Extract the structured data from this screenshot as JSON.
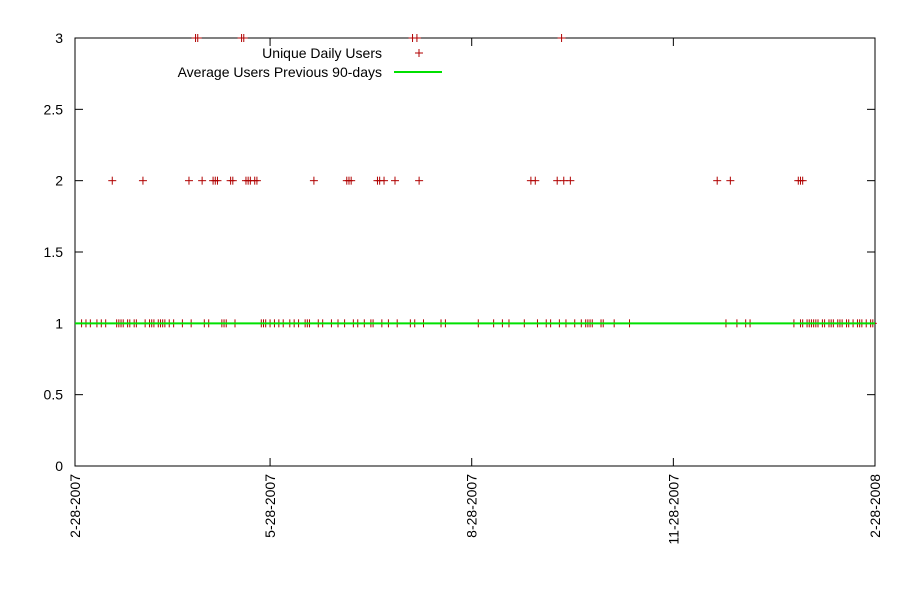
{
  "chart_data": {
    "type": "scatter",
    "title": "",
    "xlabel": "",
    "ylabel": "",
    "x_range": [
      "2007-02-28",
      "2008-02-28"
    ],
    "ylim": [
      0,
      3
    ],
    "grid": false,
    "legend_position": "top-left",
    "x_ticks": [
      "2-28-2007",
      "5-28-2007",
      "8-28-2007",
      "11-28-2007",
      "2-28-2008"
    ],
    "y_ticks": [
      "0",
      "0.5",
      "1",
      "1.5",
      "2",
      "2.5",
      "3"
    ],
    "series": [
      {
        "name": "Unique Daily Users",
        "marker": "plus",
        "color": "#b00000",
        "points": [
          {
            "x": "2007-03-03",
            "y": 1
          },
          {
            "x": "2007-03-05",
            "y": 1
          },
          {
            "x": "2007-03-07",
            "y": 1
          },
          {
            "x": "2007-03-10",
            "y": 1
          },
          {
            "x": "2007-03-12",
            "y": 1
          },
          {
            "x": "2007-03-14",
            "y": 1
          },
          {
            "x": "2007-03-17",
            "y": 2
          },
          {
            "x": "2007-03-19",
            "y": 1
          },
          {
            "x": "2007-03-20",
            "y": 1
          },
          {
            "x": "2007-03-21",
            "y": 1
          },
          {
            "x": "2007-03-22",
            "y": 1
          },
          {
            "x": "2007-03-24",
            "y": 1
          },
          {
            "x": "2007-03-25",
            "y": 1
          },
          {
            "x": "2007-03-27",
            "y": 1
          },
          {
            "x": "2007-03-28",
            "y": 1
          },
          {
            "x": "2007-03-31",
            "y": 2
          },
          {
            "x": "2007-04-01",
            "y": 1
          },
          {
            "x": "2007-04-03",
            "y": 1
          },
          {
            "x": "2007-04-04",
            "y": 1
          },
          {
            "x": "2007-04-05",
            "y": 1
          },
          {
            "x": "2007-04-07",
            "y": 1
          },
          {
            "x": "2007-04-08",
            "y": 1
          },
          {
            "x": "2007-04-09",
            "y": 1
          },
          {
            "x": "2007-04-10",
            "y": 1
          },
          {
            "x": "2007-04-12",
            "y": 1
          },
          {
            "x": "2007-04-14",
            "y": 1
          },
          {
            "x": "2007-04-18",
            "y": 1
          },
          {
            "x": "2007-04-21",
            "y": 2
          },
          {
            "x": "2007-04-22",
            "y": 1
          },
          {
            "x": "2007-04-24",
            "y": 3
          },
          {
            "x": "2007-04-25",
            "y": 3
          },
          {
            "x": "2007-04-27",
            "y": 2
          },
          {
            "x": "2007-04-28",
            "y": 1
          },
          {
            "x": "2007-04-30",
            "y": 1
          },
          {
            "x": "2007-05-02",
            "y": 2
          },
          {
            "x": "2007-05-03",
            "y": 2
          },
          {
            "x": "2007-05-04",
            "y": 2
          },
          {
            "x": "2007-05-06",
            "y": 1
          },
          {
            "x": "2007-05-07",
            "y": 1
          },
          {
            "x": "2007-05-08",
            "y": 1
          },
          {
            "x": "2007-05-10",
            "y": 2
          },
          {
            "x": "2007-05-11",
            "y": 2
          },
          {
            "x": "2007-05-12",
            "y": 1
          },
          {
            "x": "2007-05-15",
            "y": 3
          },
          {
            "x": "2007-05-16",
            "y": 3
          },
          {
            "x": "2007-05-17",
            "y": 2
          },
          {
            "x": "2007-05-18",
            "y": 2
          },
          {
            "x": "2007-05-19",
            "y": 2
          },
          {
            "x": "2007-05-21",
            "y": 2
          },
          {
            "x": "2007-05-22",
            "y": 2
          },
          {
            "x": "2007-05-24",
            "y": 1
          },
          {
            "x": "2007-05-25",
            "y": 1
          },
          {
            "x": "2007-05-26",
            "y": 1
          },
          {
            "x": "2007-05-28",
            "y": 1
          },
          {
            "x": "2007-05-30",
            "y": 1
          },
          {
            "x": "2007-06-01",
            "y": 1
          },
          {
            "x": "2007-06-03",
            "y": 1
          },
          {
            "x": "2007-06-06",
            "y": 1
          },
          {
            "x": "2007-06-08",
            "y": 1
          },
          {
            "x": "2007-06-10",
            "y": 1
          },
          {
            "x": "2007-06-13",
            "y": 1
          },
          {
            "x": "2007-06-14",
            "y": 1
          },
          {
            "x": "2007-06-15",
            "y": 1
          },
          {
            "x": "2007-06-17",
            "y": 2
          },
          {
            "x": "2007-06-19",
            "y": 1
          },
          {
            "x": "2007-06-21",
            "y": 1
          },
          {
            "x": "2007-06-25",
            "y": 1
          },
          {
            "x": "2007-06-28",
            "y": 1
          },
          {
            "x": "2007-07-01",
            "y": 1
          },
          {
            "x": "2007-07-02",
            "y": 2
          },
          {
            "x": "2007-07-03",
            "y": 2
          },
          {
            "x": "2007-07-04",
            "y": 2
          },
          {
            "x": "2007-07-05",
            "y": 1
          },
          {
            "x": "2007-07-07",
            "y": 1
          },
          {
            "x": "2007-07-10",
            "y": 1
          },
          {
            "x": "2007-07-13",
            "y": 1
          },
          {
            "x": "2007-07-14",
            "y": 1
          },
          {
            "x": "2007-07-16",
            "y": 2
          },
          {
            "x": "2007-07-17",
            "y": 2
          },
          {
            "x": "2007-07-18",
            "y": 1
          },
          {
            "x": "2007-07-19",
            "y": 2
          },
          {
            "x": "2007-07-21",
            "y": 1
          },
          {
            "x": "2007-07-24",
            "y": 2
          },
          {
            "x": "2007-07-25",
            "y": 1
          },
          {
            "x": "2007-07-31",
            "y": 1
          },
          {
            "x": "2007-08-01",
            "y": 3
          },
          {
            "x": "2007-08-02",
            "y": 1
          },
          {
            "x": "2007-08-03",
            "y": 3
          },
          {
            "x": "2007-08-04",
            "y": 2
          },
          {
            "x": "2007-08-06",
            "y": 1
          },
          {
            "x": "2007-08-14",
            "y": 1
          },
          {
            "x": "2007-08-16",
            "y": 1
          },
          {
            "x": "2007-08-31",
            "y": 1
          },
          {
            "x": "2007-09-07",
            "y": 1
          },
          {
            "x": "2007-09-11",
            "y": 1
          },
          {
            "x": "2007-09-14",
            "y": 1
          },
          {
            "x": "2007-09-21",
            "y": 1
          },
          {
            "x": "2007-09-24",
            "y": 2
          },
          {
            "x": "2007-09-26",
            "y": 2
          },
          {
            "x": "2007-09-27",
            "y": 1
          },
          {
            "x": "2007-10-01",
            "y": 1
          },
          {
            "x": "2007-10-03",
            "y": 1
          },
          {
            "x": "2007-10-06",
            "y": 2
          },
          {
            "x": "2007-10-07",
            "y": 1
          },
          {
            "x": "2007-10-08",
            "y": 3
          },
          {
            "x": "2007-10-09",
            "y": 2
          },
          {
            "x": "2007-10-10",
            "y": 1
          },
          {
            "x": "2007-10-12",
            "y": 2
          },
          {
            "x": "2007-10-14",
            "y": 1
          },
          {
            "x": "2007-10-17",
            "y": 1
          },
          {
            "x": "2007-10-19",
            "y": 1
          },
          {
            "x": "2007-10-20",
            "y": 1
          },
          {
            "x": "2007-10-21",
            "y": 1
          },
          {
            "x": "2007-10-22",
            "y": 1
          },
          {
            "x": "2007-10-26",
            "y": 1
          },
          {
            "x": "2007-10-27",
            "y": 1
          },
          {
            "x": "2007-11-01",
            "y": 1
          },
          {
            "x": "2007-11-08",
            "y": 1
          },
          {
            "x": "2007-12-18",
            "y": 2
          },
          {
            "x": "2007-12-22",
            "y": 1
          },
          {
            "x": "2007-12-24",
            "y": 2
          },
          {
            "x": "2007-12-27",
            "y": 1
          },
          {
            "x": "2007-12-31",
            "y": 1
          },
          {
            "x": "2008-01-02",
            "y": 1
          },
          {
            "x": "2008-01-22",
            "y": 1
          },
          {
            "x": "2008-01-24",
            "y": 2
          },
          {
            "x": "2008-01-25",
            "y": 1
          },
          {
            "x": "2008-01-25",
            "y": 2
          },
          {
            "x": "2008-01-26",
            "y": 2
          },
          {
            "x": "2008-01-26",
            "y": 1
          },
          {
            "x": "2008-01-28",
            "y": 1
          },
          {
            "x": "2008-01-29",
            "y": 1
          },
          {
            "x": "2008-01-30",
            "y": 1
          },
          {
            "x": "2008-01-31",
            "y": 1
          },
          {
            "x": "2008-02-01",
            "y": 1
          },
          {
            "x": "2008-02-02",
            "y": 1
          },
          {
            "x": "2008-02-04",
            "y": 1
          },
          {
            "x": "2008-02-05",
            "y": 1
          },
          {
            "x": "2008-02-07",
            "y": 1
          },
          {
            "x": "2008-02-08",
            "y": 1
          },
          {
            "x": "2008-02-09",
            "y": 1
          },
          {
            "x": "2008-02-11",
            "y": 1
          },
          {
            "x": "2008-02-12",
            "y": 1
          },
          {
            "x": "2008-02-13",
            "y": 1
          },
          {
            "x": "2008-02-15",
            "y": 1
          },
          {
            "x": "2008-02-16",
            "y": 1
          },
          {
            "x": "2008-02-18",
            "y": 1
          },
          {
            "x": "2008-02-20",
            "y": 1
          },
          {
            "x": "2008-02-21",
            "y": 1
          },
          {
            "x": "2008-02-22",
            "y": 1
          },
          {
            "x": "2008-02-24",
            "y": 1
          },
          {
            "x": "2008-02-26",
            "y": 1
          },
          {
            "x": "2008-02-27",
            "y": 1
          }
        ]
      },
      {
        "name": "Average Users Previous 90-days",
        "type": "line",
        "color": "#00e000",
        "points": [
          {
            "x": "2007-02-28",
            "y": 1
          },
          {
            "x": "2008-02-28",
            "y": 1
          }
        ]
      }
    ]
  }
}
